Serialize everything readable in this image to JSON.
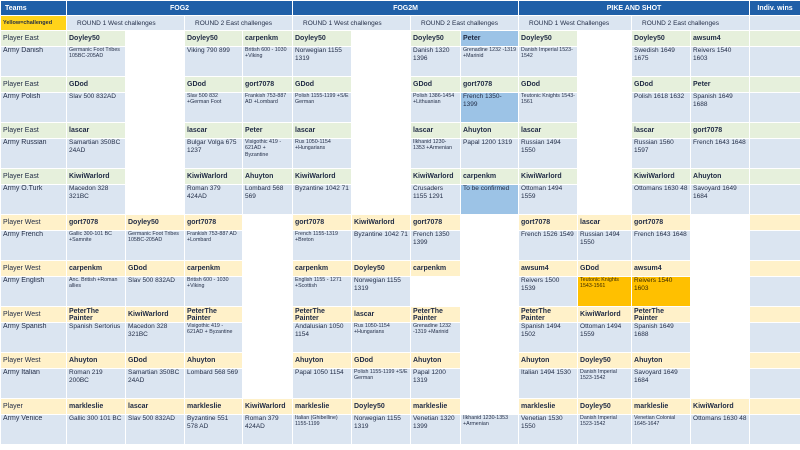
{
  "header": {
    "teams": "Teams",
    "fog2": "FOG2",
    "fog2m": "FOG2M",
    "pike": "PIKE AND SHOT",
    "wins": "Indiv. wins",
    "legend": "Yellow=challenged",
    "r1w": "ROUND  1 West challenges",
    "r2e": "ROUND  2 East challenges",
    "r1w_ps": "ROUND  1 West Challenges"
  },
  "rows": [
    {
      "label": "Player East",
      "style": "green",
      "cells": [
        "Doyley50",
        "",
        "Doyley50",
        "carpenkm",
        "Doyley50",
        "",
        "Doyley50",
        "Peter",
        "Doyley50",
        "",
        "Doyley50",
        "awsum4",
        ""
      ]
    },
    {
      "label": "Army Danish",
      "cells": [
        "Germanic Foot Tribes 105BC-205AD",
        "",
        "Viking 790 899",
        "British 600 - 1030 +Viking",
        "Norwegian 1155 1319",
        "",
        "Danish 1320  1396",
        "Grenadine 1232 -1319 +Marinid",
        "Danish Imperial 1523-1542",
        "",
        "Swedish 1649 1675",
        "Reivers 1540 1603",
        ""
      ]
    },
    {
      "label": "Player East",
      "style": "green",
      "cells": [
        "GDod",
        "",
        "GDod",
        "gort7078",
        "GDod",
        "",
        "GDod",
        "gort7078",
        "GDod",
        "",
        "GDod",
        "Peter",
        ""
      ]
    },
    {
      "label": "Army Polish",
      "cells": [
        "Slav 500 832AD",
        "",
        "Slav 500 832 +German Foot",
        "Frankish 753-887 AD +Lombard",
        "Polish 1155-1199 +S/E German",
        "",
        "Polish 1386-1454 +Lithuanian",
        "French 1350-1399",
        "Teutonic Knights 1543-1561",
        "",
        "Polish 1618 1632",
        "Spanish 1649 1688",
        ""
      ]
    },
    {
      "label": "Player East",
      "style": "green",
      "cells": [
        "lascar",
        "",
        "lascar",
        "Peter",
        "lascar",
        "",
        "lascar",
        "Ahuyton",
        "lascar",
        "",
        "lascar",
        "gort7078",
        ""
      ]
    },
    {
      "label": "Army Russian",
      "cells": [
        "Samartian 350BC  24AD",
        "",
        "Bulgar Volga 675 1237",
        "Visigothic 419 - 621AD + Byzantine",
        "Rus 1050-1154 +Hungarians",
        "",
        "Ilkhanid 1230-1353 +Armenian",
        "Papal 1200 1319",
        "Russian 1494 1550",
        "",
        "Russian 1560 1597",
        "French 1643 1648",
        ""
      ]
    },
    {
      "label": "Player East",
      "style": "green",
      "cells": [
        "KiwiWarlord",
        "",
        "KiwiWarlord",
        "Ahuyton",
        "KiwiWarlord",
        "",
        "KiwiWarlord",
        "carpenkm",
        "KiwiWarlord",
        "",
        "KiwiWarlord",
        "Ahuyton",
        ""
      ]
    },
    {
      "label": "Army O.Turk",
      "cells": [
        "Macedon 328 321BC",
        "",
        "Roman 379 424AD",
        "Lombard 568 569",
        "Byzantine 1042 71",
        "",
        "Crusaders 1155 1291",
        "To be confirmed",
        "Ottoman 1494 1559",
        "",
        "Ottomans 1630 48",
        "Savoyard 1649 1684",
        ""
      ]
    },
    {
      "label": "Player West",
      "style": "yellow",
      "cells": [
        "gort7078",
        "Doyley50",
        "gort7078",
        "",
        "gort7078",
        "KiwiWarlord",
        "gort7078",
        "",
        "gort7078",
        "lascar",
        "gort7078",
        "",
        ""
      ]
    },
    {
      "label": "Army French",
      "cells": [
        "Gallic 300-101 BC +Samnite",
        "Germanic Foot Tribes 105BC-205AD",
        "Frankish 753-887 AD +Lombard",
        "",
        "French 1155-1319 +Breton",
        "Byzantine 1042 71",
        "French 1350 1399",
        "",
        "French 1526 1549",
        "Russian 1494 1550",
        "French 1643 1648",
        "",
        ""
      ]
    },
    {
      "label": "Player West",
      "style": "yellow",
      "cells": [
        "carpenkm",
        "GDod",
        "carpenkm",
        "",
        "carpenkm",
        "Doyley50",
        "carpenkm",
        "",
        "awsum4",
        "GDod",
        "awsum4",
        "",
        ""
      ]
    },
    {
      "label": "Army English",
      "cells": [
        "Anc. British +Roman allies",
        "Slav 500 832AD",
        "British 600 - 1030 +Viking",
        "",
        "English 1155 - 1271 +Scottish",
        "Norwegian 1155 1319",
        "",
        "",
        "Reivers 1500 1539",
        "Teutonic Knights 1543-1561",
        "Reivers 1540 1603",
        "",
        ""
      ]
    },
    {
      "label": "Player West",
      "style": "yellow",
      "cells": [
        "PeterThe Painter",
        "KiwiWarlord",
        "PeterThe Painter",
        "",
        "PeterThe Painter",
        "lascar",
        "PeterThe Painter",
        "",
        "PeterThe Painter",
        "KiwiWarlord",
        "PeterThe Painter",
        "",
        ""
      ]
    },
    {
      "label": "Army Spanish",
      "cells": [
        "Spanish Sertorius",
        "Macedon 328 321BC",
        "Visigothic 419 - 621AD + Byzantine",
        "",
        "Andalusian 1050  1154",
        "Rus 1050-1154 +Hungarians",
        "Grenadine 1232 -1319 +Marinid",
        "",
        "Spanish 1494  1502",
        "Ottoman 1494 1559",
        "Spanish 1649 1688",
        "",
        ""
      ]
    },
    {
      "label": "Player West",
      "style": "yellow",
      "cells": [
        "Ahuyton",
        "GDod",
        "Ahuyton",
        "",
        "Ahuyton",
        "GDod",
        "Ahuyton",
        "",
        "Ahuyton",
        "Doyley50",
        "Ahuyton",
        "",
        ""
      ]
    },
    {
      "label": "Army Italian",
      "cells": [
        "Roman 219 200BC",
        "Samartian 350BC  24AD",
        "Lombard 568 569",
        "",
        "Papal 1050 1154",
        "Polish 1155-1199 +S/E German",
        "Papal 1200 1319",
        "",
        "Italian 1494 1530",
        "Danish Imperial 1523-1542",
        "Savoyard 1649 1684",
        "",
        ""
      ]
    },
    {
      "label": "Player",
      "style": "yellow",
      "cells": [
        "markleslie",
        "lascar",
        "markleslie",
        "KiwiWarlord",
        "markleslie",
        "Doyley50",
        "markleslie",
        "",
        "markleslie",
        "Doyley50",
        "markleslie",
        "KiwiWarlord",
        ""
      ]
    },
    {
      "label": "Army Venice",
      "cells": [
        "Gallic 300 101 BC",
        "Slav 500 832AD",
        "Byzantine 551 578 AD",
        "Roman 379 424AD",
        "Italian (Ghibelline) 1155-1199",
        "Norwegian 1155 1319",
        "Venetian 1320 1399",
        "Ilkhanid 1230-1353 +Armenian",
        "Venetian 1530 1550",
        "Danish Imperial 1523-1542",
        "Venetian Colonial 1645-1647",
        "Ottomans 1630 48",
        ""
      ]
    }
  ]
}
